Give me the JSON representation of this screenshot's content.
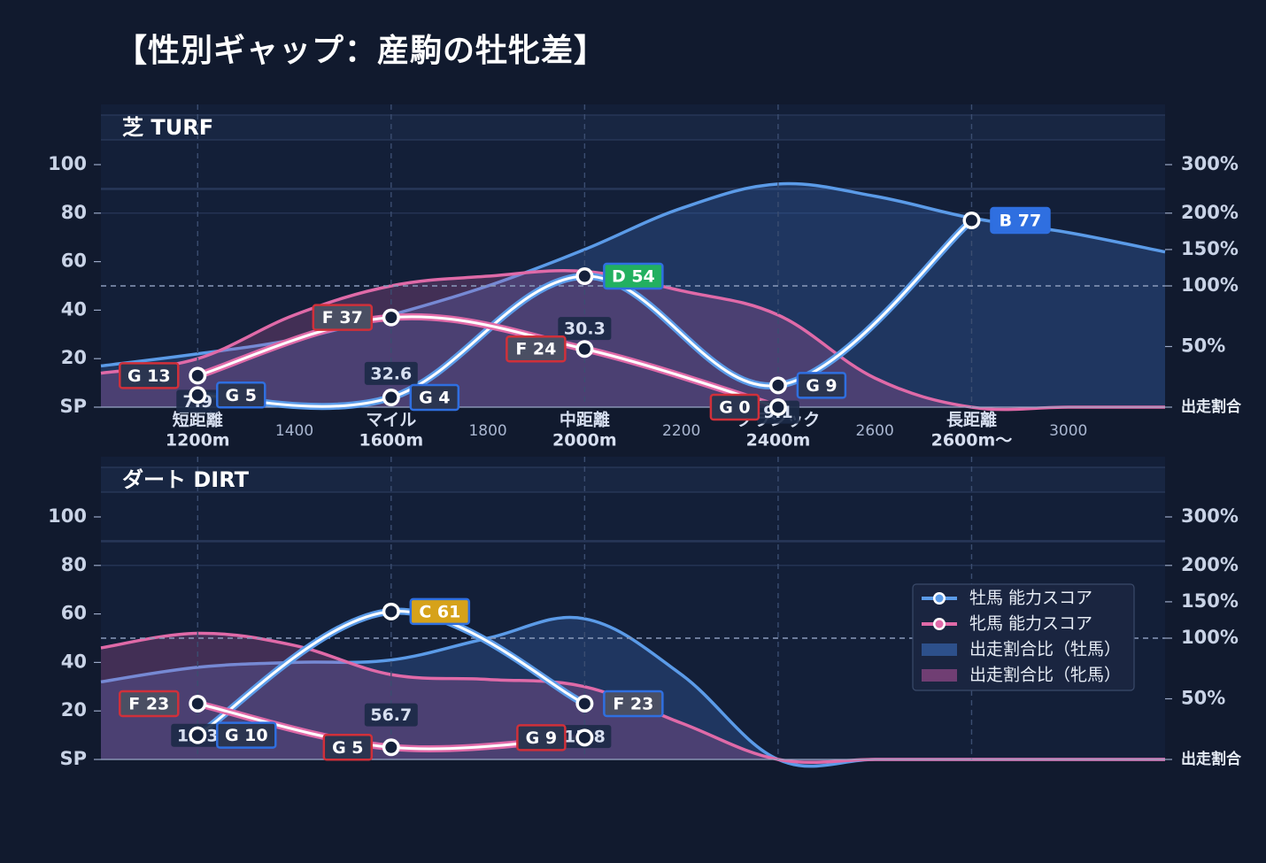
{
  "title": "【性別ギャップ：産駒の牡牝差】",
  "colors": {
    "male": "#5b9be8",
    "female": "#e06aa8",
    "grade_B": "#2f6fe0",
    "grade_C": "#d6a21a",
    "grade_D": "#22b060",
    "grade_F": "#4a4f63",
    "grade_G": "#2b3550",
    "border_male": "#2f6fe0",
    "border_female": "#d0303a"
  },
  "chart_data": [
    {
      "panel": "芝 TURF",
      "type": "line",
      "left_axis": {
        "ticks": [
          "SP",
          "20",
          "40",
          "60",
          "80",
          "100"
        ],
        "range": [
          0,
          100
        ]
      },
      "right_axis": {
        "ticks": [
          "出走割合",
          "50%",
          "100%",
          "150%",
          "200%",
          "300%"
        ]
      },
      "x_categories": [
        {
          "label": "短距離",
          "sub": "1200m",
          "x": 1200
        },
        {
          "label": "マイル",
          "sub": "1600m",
          "x": 1600
        },
        {
          "label": "中距離",
          "sub": "2000m",
          "x": 2000
        },
        {
          "label": "クラシック",
          "sub": "2400m",
          "x": 2400
        },
        {
          "label": "長距離",
          "sub": "2600m〜",
          "x": 2800
        }
      ],
      "x_minor_ticks": [
        "1400",
        "1800",
        "2200",
        "2600",
        "3000"
      ],
      "x_range": [
        1000,
        3200
      ],
      "series": [
        {
          "name": "牡馬 能力スコア",
          "points": [
            {
              "x": 1200,
              "y": 5,
              "grade": "G",
              "label": "G 5"
            },
            {
              "x": 1600,
              "y": 4,
              "grade": "G",
              "label": "G 4"
            },
            {
              "x": 2000,
              "y": 54,
              "grade": "D",
              "label": "D 54"
            },
            {
              "x": 2400,
              "y": 9,
              "grade": "G",
              "label": "G 9"
            },
            {
              "x": 2800,
              "y": 77,
              "grade": "B",
              "label": "B 77"
            }
          ]
        },
        {
          "name": "牝馬 能力スコア",
          "points": [
            {
              "x": 1200,
              "y": 13,
              "grade": "G",
              "label": "G 13"
            },
            {
              "x": 1600,
              "y": 37,
              "grade": "F",
              "label": "F 37"
            },
            {
              "x": 2000,
              "y": 24,
              "grade": "F",
              "label": "F 24"
            },
            {
              "x": 2400,
              "y": 0,
              "grade": "G",
              "label": "G 0"
            }
          ]
        }
      ],
      "gap_values": [
        {
          "x": 1200,
          "label": "7.9"
        },
        {
          "x": 1600,
          "label": "32.6"
        },
        {
          "x": 2000,
          "label": "30.3"
        },
        {
          "x": 2400,
          "label": "9.1"
        }
      ],
      "ratio_areas": [
        {
          "name": "出走割合比（牡馬）",
          "x": [
            1000,
            1200,
            1400,
            1600,
            1800,
            2000,
            2200,
            2400,
            2600,
            2800,
            3000,
            3200
          ],
          "y": [
            17,
            22,
            28,
            38,
            50,
            65,
            82,
            92,
            87,
            78,
            72,
            64
          ]
        },
        {
          "name": "出走割合比（牝馬）",
          "x": [
            1000,
            1200,
            1400,
            1600,
            1800,
            2000,
            2200,
            2400,
            2600,
            2800,
            3000,
            3200
          ],
          "y": [
            14,
            20,
            38,
            50,
            54,
            56,
            48,
            38,
            12,
            0,
            0,
            0
          ]
        }
      ]
    },
    {
      "panel": "ダート DIRT",
      "type": "line",
      "left_axis": {
        "ticks": [
          "SP",
          "20",
          "40",
          "60",
          "80",
          "100"
        ],
        "range": [
          0,
          100
        ]
      },
      "right_axis": {
        "ticks": [
          "出走割合",
          "50%",
          "100%",
          "150%",
          "200%",
          "300%"
        ]
      },
      "x_range": [
        1000,
        3200
      ],
      "series": [
        {
          "name": "牡馬 能力スコア",
          "points": [
            {
              "x": 1200,
              "y": 10,
              "grade": "G",
              "label": "G 10"
            },
            {
              "x": 1600,
              "y": 61,
              "grade": "C",
              "label": "C 61"
            },
            {
              "x": 2000,
              "y": 23,
              "grade": "F",
              "label": "F 23"
            }
          ]
        },
        {
          "name": "牝馬 能力スコア",
          "points": [
            {
              "x": 1200,
              "y": 23,
              "grade": "F",
              "label": "F 23"
            },
            {
              "x": 1600,
              "y": 5,
              "grade": "G",
              "label": "G 5"
            },
            {
              "x": 2000,
              "y": 9,
              "grade": "G",
              "label": "G 9"
            }
          ]
        }
      ],
      "gap_values": [
        {
          "x": 1200,
          "label": "13.3"
        },
        {
          "x": 1600,
          "label": "56.7"
        },
        {
          "x": 2000,
          "label": "13.8"
        }
      ],
      "ratio_areas": [
        {
          "name": "出走割合比（牡馬）",
          "x": [
            1000,
            1200,
            1400,
            1600,
            1800,
            2000,
            2200,
            2400,
            2600,
            2800,
            3000,
            3200
          ],
          "y": [
            32,
            38,
            40,
            41,
            50,
            58,
            35,
            0,
            0,
            0,
            0,
            0
          ]
        },
        {
          "name": "出走割合比（牝馬）",
          "x": [
            1000,
            1200,
            1400,
            1600,
            1800,
            2000,
            2200,
            2400,
            2600,
            2800,
            3000,
            3200
          ],
          "y": [
            46,
            52,
            47,
            35,
            33,
            30,
            15,
            0,
            0,
            0,
            0,
            0
          ]
        }
      ]
    }
  ],
  "legend": [
    {
      "label": "牡馬 能力スコア",
      "kind": "line-male"
    },
    {
      "label": "牝馬 能力スコア",
      "kind": "line-female"
    },
    {
      "label": "出走割合比（牡馬）",
      "kind": "area-male"
    },
    {
      "label": "出走割合比（牝馬）",
      "kind": "area-female"
    }
  ]
}
